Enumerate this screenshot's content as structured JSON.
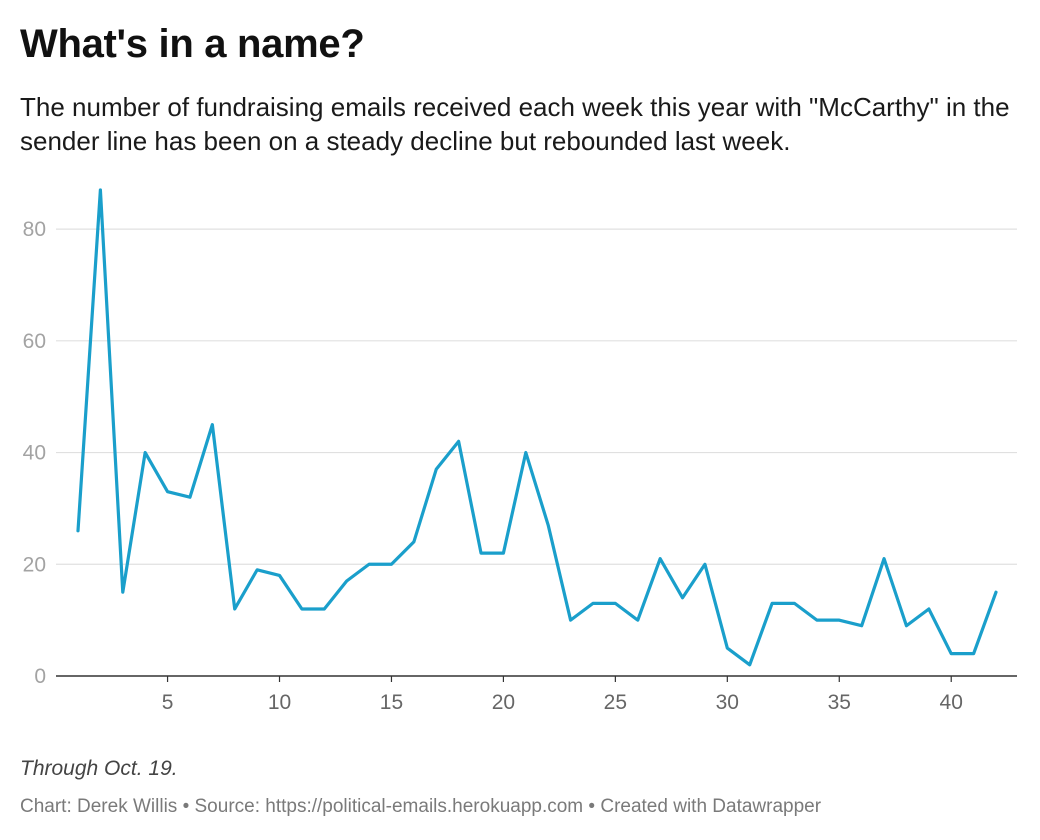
{
  "title": "What's in a name?",
  "subtitle": "The number of fundraising emails received each week this year with \"McCarthy\" in the sender line has been on a steady decline but rebounded last week.",
  "notes": "Through Oct. 19.",
  "byline": "Chart: Derek Willis • Source: https://political-emails.herokuapp.com • Created with Datawrapper",
  "colors": {
    "line": "#1a9fcb",
    "grid": "#e0e0e0",
    "axis": "#333333",
    "y_tick_text": "#a3a3a3",
    "x_tick_text": "#666666"
  },
  "chart_data": {
    "type": "line",
    "x": [
      1,
      2,
      3,
      4,
      5,
      6,
      7,
      8,
      9,
      10,
      11,
      12,
      13,
      14,
      15,
      16,
      17,
      18,
      19,
      20,
      21,
      22,
      23,
      24,
      25,
      26,
      27,
      28,
      29,
      30,
      31,
      32,
      33,
      34,
      35,
      36,
      37,
      38,
      39,
      40,
      41,
      42
    ],
    "series": [
      {
        "values": [
          26,
          87,
          15,
          40,
          33,
          32,
          45,
          12,
          19,
          18,
          12,
          12,
          17,
          20,
          20,
          24,
          37,
          42,
          22,
          22,
          40,
          27,
          10,
          13,
          13,
          10,
          21,
          14,
          20,
          5,
          2,
          13,
          13,
          10,
          10,
          9,
          21,
          9,
          12,
          4,
          4,
          15
        ]
      }
    ],
    "xlim": [
      1,
      42
    ],
    "ylim": [
      0,
      87
    ],
    "x_ticks": [
      5,
      10,
      15,
      20,
      25,
      30,
      35,
      40
    ],
    "y_ticks": [
      0,
      20,
      40,
      60,
      80
    ],
    "grid": true
  }
}
